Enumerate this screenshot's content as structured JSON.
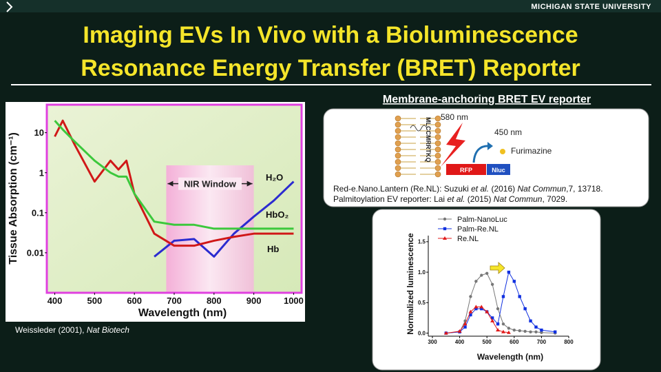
{
  "header": {
    "logo": "MICHIGAN STATE UNIVERSITY",
    "title_lines": [
      "Imaging EVs In Vivo with a Bioluminescence",
      "Resonance Energy Transfer (BRET) Reporter"
    ]
  },
  "diagram": {
    "heading": "Membrane-anchoring BRET EV reporter",
    "peptide": "MLCCMRRTKQ",
    "emission_red": "580 nm",
    "emission_blue": "450 nm",
    "substrate": "Furimazine",
    "acceptor": "RFP",
    "donor": "Nluc",
    "references": [
      [
        "Red-e.Nano.Lantern (Re.NL): Suzuki ",
        "et al.",
        " (2016) ",
        "Nat Commun",
        ",7, 13718."
      ],
      [
        "Palmitoylation EV reporter: Lai ",
        "et al.",
        " (2015) ",
        "Nat Commun",
        ", 7029."
      ]
    ]
  },
  "caption": [
    "Weissleder (2001), ",
    "Nat Biotech"
  ],
  "chart_data": [
    {
      "type": "line",
      "x_label": "Wavelength (nm)",
      "y_label": "Tissue Absorption (cm⁻¹)",
      "ylog": true,
      "xlim": [
        380,
        1020
      ],
      "ylim": [
        0.001,
        50
      ],
      "xticks": [
        400,
        500,
        600,
        700,
        800,
        900,
        1000
      ],
      "yticks": [
        10,
        1,
        0.1,
        0.01
      ],
      "window": {
        "label": "NIR Window",
        "range": [
          680,
          900
        ]
      },
      "x": [
        400,
        420,
        450,
        500,
        540,
        560,
        580,
        600,
        650,
        700,
        750,
        800,
        850,
        900,
        950,
        1000
      ],
      "series": [
        {
          "name": "H₂O",
          "color": "#2b2bd0",
          "values": [
            null,
            null,
            null,
            null,
            null,
            null,
            null,
            null,
            0.008,
            0.02,
            0.022,
            0.008,
            0.03,
            0.08,
            0.2,
            0.6
          ]
        },
        {
          "name": "HbO₂",
          "color": "#d01818",
          "values": [
            8,
            20,
            5,
            0.6,
            2,
            1.2,
            2,
            0.3,
            0.03,
            0.015,
            0.015,
            0.02,
            0.025,
            0.03,
            0.03,
            0.03
          ]
        },
        {
          "name": "Hb",
          "color": "#3cc83c",
          "values": [
            20,
            12,
            6,
            2,
            1,
            0.8,
            0.8,
            0.3,
            0.06,
            0.05,
            0.05,
            0.04,
            0.04,
            0.04,
            0.04,
            0.04
          ]
        }
      ]
    },
    {
      "type": "line",
      "markers": true,
      "x_label": "Wavelength (nm)",
      "y_label": "Normalized luminescence",
      "xlim": [
        300,
        800
      ],
      "ylim": [
        -0.05,
        1.6
      ],
      "xticks": [
        300,
        400,
        500,
        600,
        700,
        800
      ],
      "yticks": [
        {
          "value": 0,
          "label": "0.0"
        },
        0.5,
        {
          "value": 1,
          "label": "1.0"
        },
        1.5
      ],
      "x": [
        350,
        400,
        420,
        440,
        460,
        480,
        500,
        520,
        540,
        560,
        580,
        600,
        620,
        640,
        660,
        680,
        700,
        750
      ],
      "series": [
        {
          "name": "Palm-NanoLuc",
          "color": "#777777",
          "marker": "circle",
          "values": [
            0,
            0.02,
            0.2,
            0.6,
            0.85,
            0.95,
            0.98,
            0.8,
            0.4,
            0.15,
            0.08,
            0.05,
            0.04,
            0.03,
            0.02,
            0.02,
            0.01,
            0
          ]
        },
        {
          "name": "Palm-Re.NL",
          "color": "#1030e0",
          "marker": "square",
          "values": [
            0,
            0.02,
            0.1,
            0.3,
            0.4,
            0.4,
            0.35,
            0.25,
            0.15,
            0.6,
            1.0,
            0.85,
            0.6,
            0.4,
            0.2,
            0.1,
            0.05,
            0.02
          ]
        },
        {
          "name": "Re.NL",
          "color": "#e01818",
          "marker": "triangle",
          "values": [
            0,
            0.03,
            0.15,
            0.35,
            0.43,
            0.43,
            0.35,
            0.2,
            0.05,
            0.02,
            0.01,
            null,
            null,
            null,
            null,
            null,
            null,
            null
          ]
        }
      ]
    }
  ]
}
